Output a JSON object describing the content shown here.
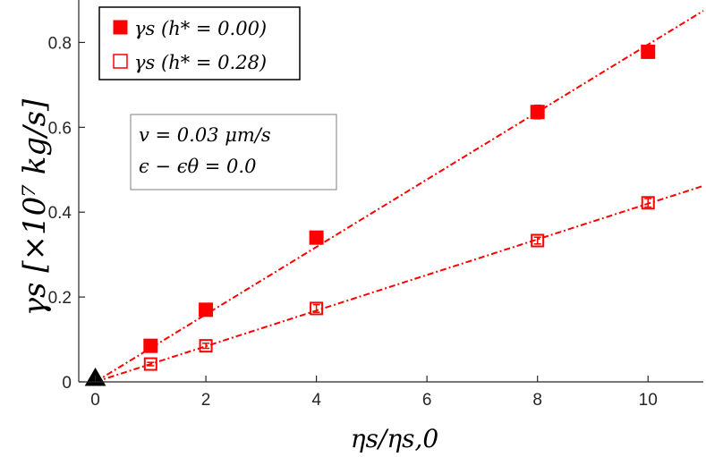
{
  "chart_data": {
    "type": "scatter",
    "xlabel": "ηs/ηs,0",
    "ylabel": "γs [×10⁷ kg/s]",
    "xlim": [
      -0.3,
      11
    ],
    "ylim": [
      0,
      0.9
    ],
    "xticks": [
      "0",
      "2",
      "4",
      "6",
      "8",
      "10"
    ],
    "yticks": [
      "0",
      "0.2",
      "0.4",
      "0.6",
      "0.8"
    ],
    "grid": false,
    "legend_position": "top-left",
    "annotation": [
      "v = 0.03 μm/s",
      "ϵ − ϵθ = 0.0"
    ],
    "origin_marker": {
      "x": 0,
      "y": 0,
      "shape": "triangle"
    },
    "series": [
      {
        "name": "γs (h* = 0.00)",
        "marker": "filled-square",
        "color": "#ff0000",
        "x": [
          1,
          2,
          4,
          8,
          10
        ],
        "y": [
          0.085,
          0.17,
          0.34,
          0.636,
          0.778
        ],
        "err": [
          0.004,
          0.006,
          0.008,
          0.016,
          0.015
        ],
        "fit": {
          "slope": 0.0795,
          "intercept": 0.0
        }
      },
      {
        "name": "γs (h* = 0.28)",
        "marker": "open-square",
        "color": "#ff0000",
        "x": [
          1,
          2,
          4,
          8,
          10
        ],
        "y": [
          0.042,
          0.085,
          0.173,
          0.333,
          0.422
        ],
        "err": [
          0.004,
          0.006,
          0.009,
          0.008,
          0.01
        ],
        "fit": {
          "slope": 0.042,
          "intercept": 0.0
        }
      }
    ]
  }
}
